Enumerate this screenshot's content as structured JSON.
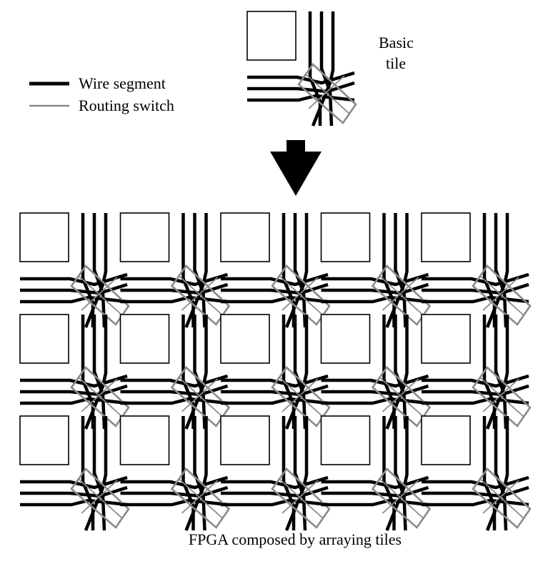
{
  "legend": {
    "wire_label": "Wire segment",
    "switch_label": "Routing switch"
  },
  "basic_tile": {
    "label_line1": "Basic",
    "label_line2": "tile"
  },
  "array": {
    "caption": "FPGA composed by arraying tiles",
    "rows": 3,
    "cols": 5
  },
  "colors": {
    "wire": "#000000",
    "switch": "#8a8a8a",
    "block_fill": "#ffffff",
    "arrow": "#000000"
  }
}
